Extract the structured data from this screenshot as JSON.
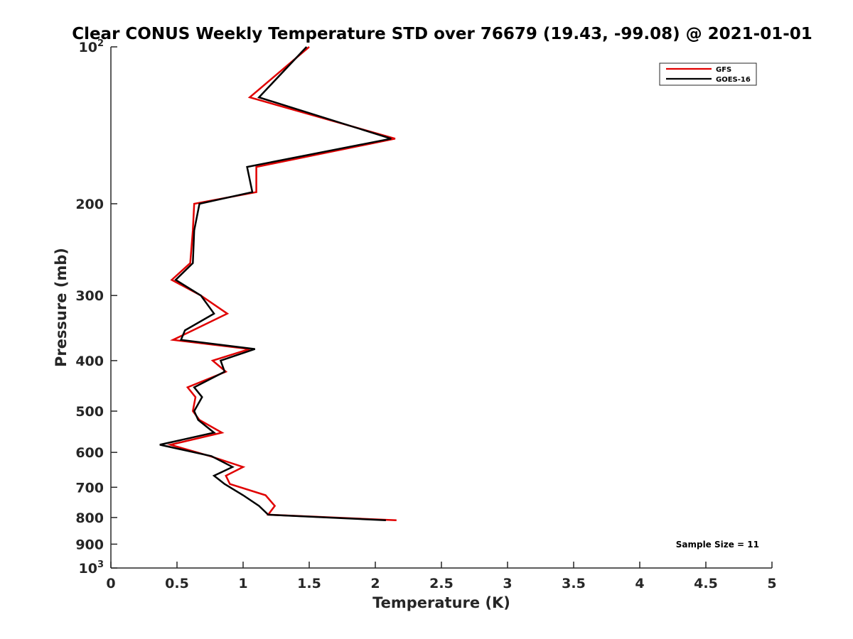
{
  "chart_data": {
    "type": "line",
    "title": "Clear CONUS Weekly Temperature STD over 76679 (19.43, -99.08) @ 2021-01-01",
    "xlabel": "Temperature (K)",
    "ylabel": "Pressure (mb)",
    "xlim": [
      0,
      5
    ],
    "ylim": [
      100,
      1000
    ],
    "y_scale": "log",
    "y_reversed": true,
    "x_ticks": [
      0,
      0.5,
      1,
      1.5,
      2,
      2.5,
      3,
      3.5,
      4,
      4.5,
      5
    ],
    "x_tick_labels": [
      "0",
      "0.5",
      "1",
      "1.5",
      "2",
      "2.5",
      "3",
      "3.5",
      "4",
      "4.5",
      "5"
    ],
    "y_ticks": [
      {
        "value": 100,
        "label": "10",
        "exp": "2"
      },
      {
        "value": 200,
        "label": "200"
      },
      {
        "value": 300,
        "label": "300"
      },
      {
        "value": 400,
        "label": "400"
      },
      {
        "value": 500,
        "label": "500"
      },
      {
        "value": 600,
        "label": "600"
      },
      {
        "value": 700,
        "label": "700"
      },
      {
        "value": 800,
        "label": "800"
      },
      {
        "value": 900,
        "label": "900"
      },
      {
        "value": 1000,
        "label": "10",
        "exp": "3"
      }
    ],
    "grid": false,
    "legend_position": "top-right",
    "annotation": "Sample Size = 11",
    "series": [
      {
        "name": "GFS",
        "color": "#e00000",
        "points": [
          [
            1.5,
            100
          ],
          [
            1.05,
            125
          ],
          [
            2.15,
            150
          ],
          [
            1.1,
            170
          ],
          [
            1.1,
            190
          ],
          [
            0.63,
            200
          ],
          [
            0.62,
            225
          ],
          [
            0.6,
            260
          ],
          [
            0.46,
            280
          ],
          [
            0.68,
            300
          ],
          [
            0.88,
            325
          ],
          [
            0.62,
            350
          ],
          [
            0.47,
            365
          ],
          [
            1.05,
            380
          ],
          [
            0.77,
            400
          ],
          [
            0.87,
            420
          ],
          [
            0.58,
            450
          ],
          [
            0.64,
            470
          ],
          [
            0.62,
            500
          ],
          [
            0.67,
            520
          ],
          [
            0.84,
            550
          ],
          [
            0.45,
            580
          ],
          [
            0.75,
            610
          ],
          [
            1.0,
            640
          ],
          [
            0.87,
            665
          ],
          [
            0.9,
            690
          ],
          [
            1.17,
            725
          ],
          [
            1.24,
            760
          ],
          [
            1.19,
            790
          ],
          [
            2.16,
            810
          ]
        ]
      },
      {
        "name": "GOES-16",
        "color": "#000000",
        "points": [
          [
            1.48,
            100
          ],
          [
            1.12,
            125
          ],
          [
            2.12,
            150
          ],
          [
            1.03,
            170
          ],
          [
            1.07,
            190
          ],
          [
            0.67,
            200
          ],
          [
            0.63,
            225
          ],
          [
            0.62,
            260
          ],
          [
            0.49,
            280
          ],
          [
            0.68,
            300
          ],
          [
            0.78,
            325
          ],
          [
            0.56,
            350
          ],
          [
            0.53,
            365
          ],
          [
            1.09,
            380
          ],
          [
            0.83,
            400
          ],
          [
            0.86,
            420
          ],
          [
            0.63,
            450
          ],
          [
            0.69,
            470
          ],
          [
            0.63,
            500
          ],
          [
            0.66,
            520
          ],
          [
            0.78,
            550
          ],
          [
            0.37,
            580
          ],
          [
            0.76,
            610
          ],
          [
            0.92,
            640
          ],
          [
            0.78,
            665
          ],
          [
            0.86,
            690
          ],
          [
            1.0,
            725
          ],
          [
            1.12,
            760
          ],
          [
            1.19,
            790
          ],
          [
            2.08,
            810
          ]
        ]
      }
    ]
  }
}
